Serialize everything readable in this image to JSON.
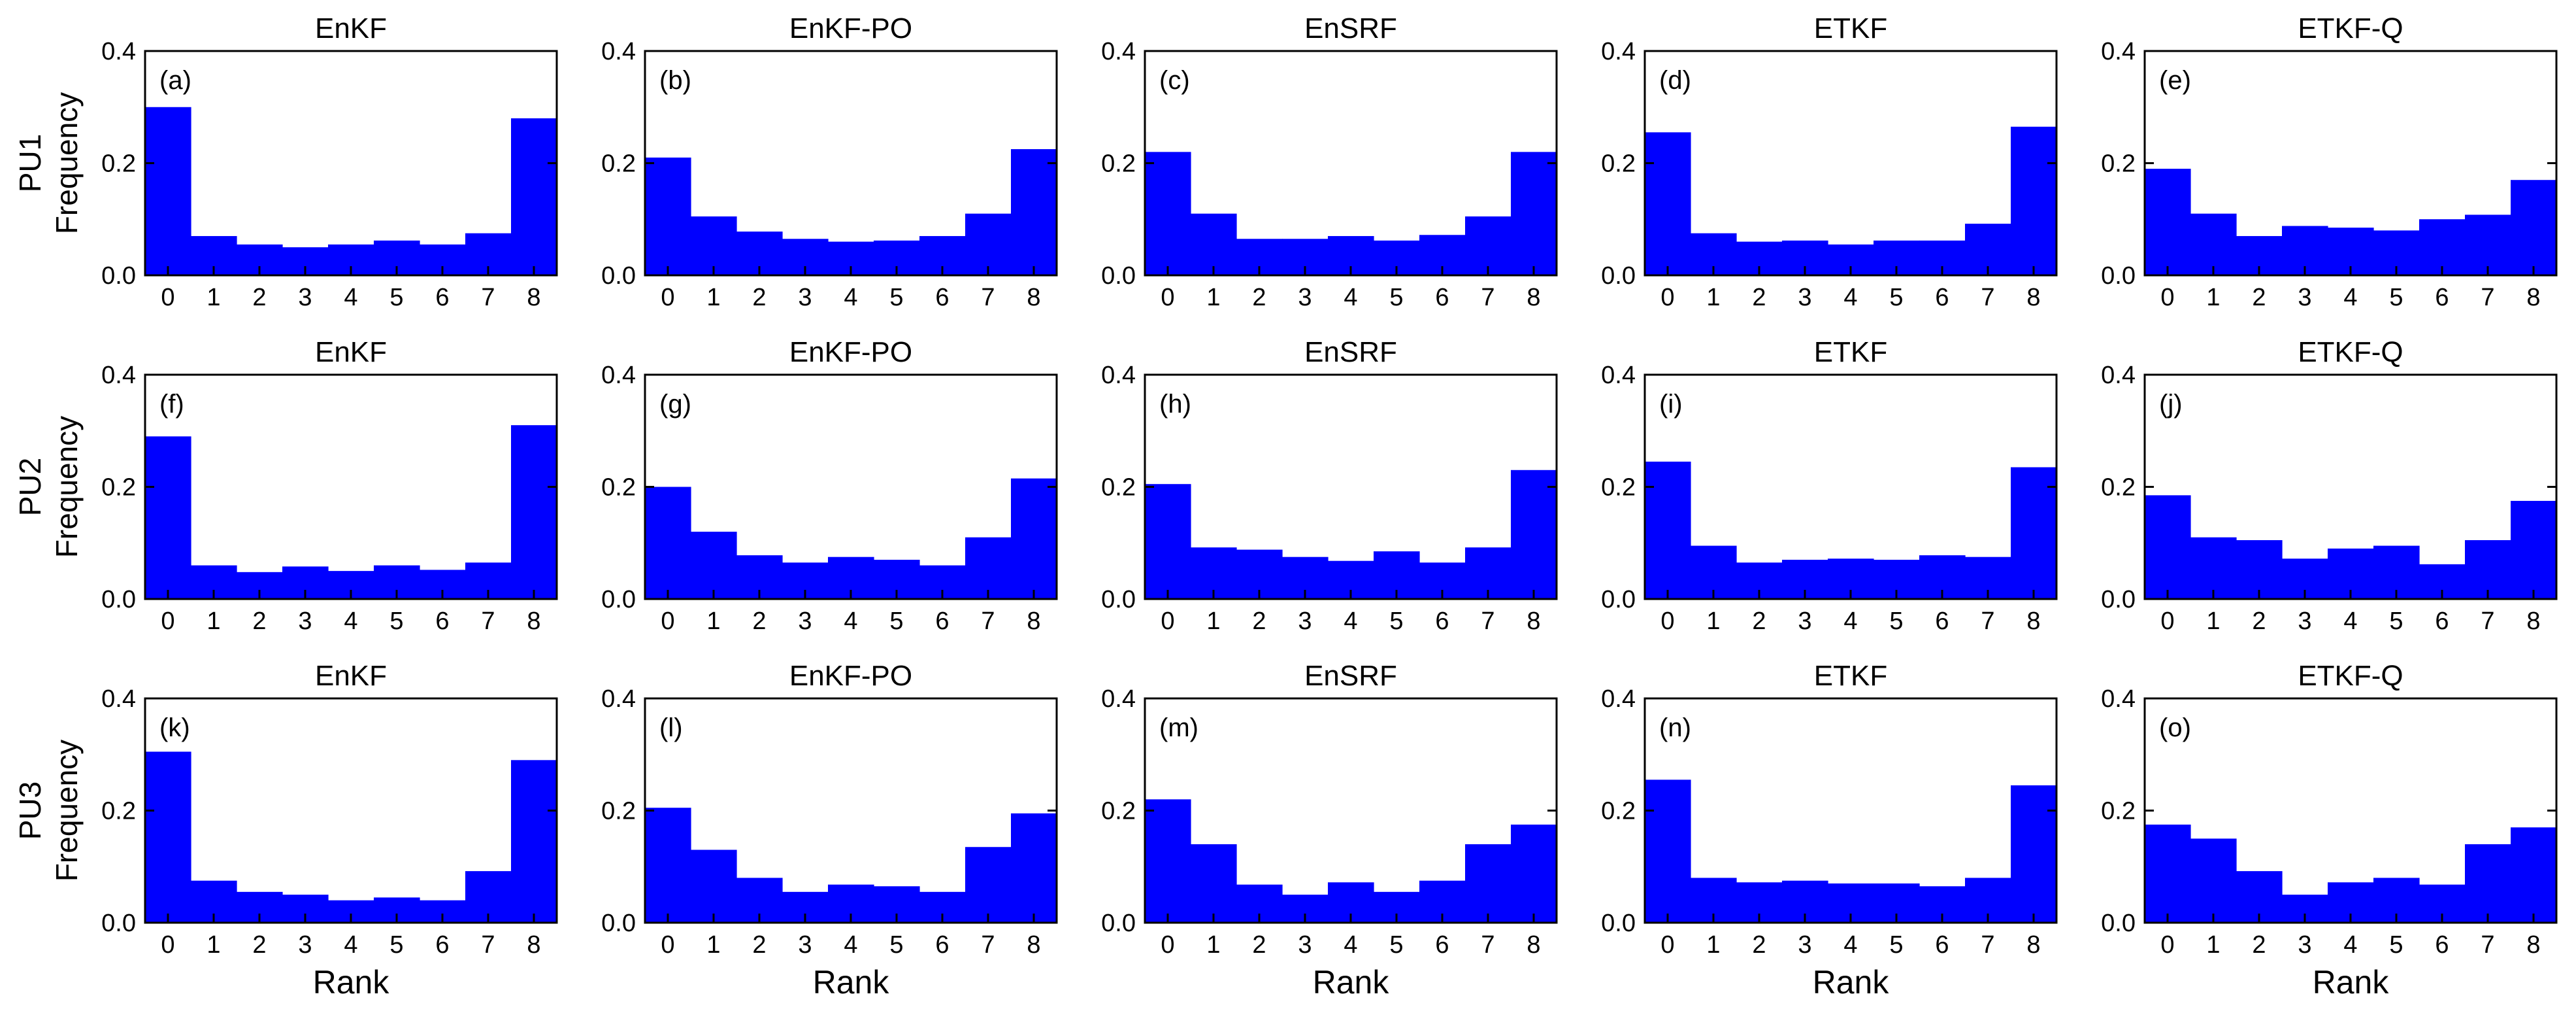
{
  "figure": {
    "row_labels": [
      "PU1",
      "PU2",
      "PU3"
    ],
    "column_titles": [
      "EnKF",
      "EnKF-PO",
      "EnSRF",
      "ETKF",
      "ETKF-Q"
    ],
    "ylabel": "Frequency",
    "xlabel": "Rank",
    "bar_color": "#0000ff",
    "axis_color": "#000000"
  },
  "chart_data": [
    {
      "type": "bar",
      "panel": "(a)",
      "row_label": "PU1",
      "title": "EnKF",
      "xlabel": "",
      "ylabel": "Frequency",
      "categories": [
        "0",
        "1",
        "2",
        "3",
        "4",
        "5",
        "6",
        "7",
        "8"
      ],
      "values": [
        0.3,
        0.07,
        0.055,
        0.05,
        0.055,
        0.062,
        0.055,
        0.075,
        0.28
      ],
      "ylim": [
        0,
        0.4
      ],
      "yticks": [
        "0.0",
        "0.2",
        "0.4"
      ]
    },
    {
      "type": "bar",
      "panel": "(b)",
      "row_label": "PU1",
      "title": "EnKF-PO",
      "xlabel": "",
      "ylabel": "",
      "categories": [
        "0",
        "1",
        "2",
        "3",
        "4",
        "5",
        "6",
        "7",
        "8"
      ],
      "values": [
        0.21,
        0.105,
        0.078,
        0.065,
        0.06,
        0.062,
        0.07,
        0.11,
        0.225
      ],
      "ylim": [
        0,
        0.4
      ],
      "yticks": [
        "0.0",
        "0.2",
        "0.4"
      ]
    },
    {
      "type": "bar",
      "panel": "(c)",
      "row_label": "PU1",
      "title": "EnSRF",
      "xlabel": "",
      "ylabel": "",
      "categories": [
        "0",
        "1",
        "2",
        "3",
        "4",
        "5",
        "6",
        "7",
        "8"
      ],
      "values": [
        0.22,
        0.11,
        0.065,
        0.065,
        0.07,
        0.062,
        0.072,
        0.105,
        0.22
      ],
      "ylim": [
        0,
        0.4
      ],
      "yticks": [
        "0.0",
        "0.2",
        "0.4"
      ]
    },
    {
      "type": "bar",
      "panel": "(d)",
      "row_label": "PU1",
      "title": "ETKF",
      "xlabel": "",
      "ylabel": "",
      "categories": [
        "0",
        "1",
        "2",
        "3",
        "4",
        "5",
        "6",
        "7",
        "8"
      ],
      "values": [
        0.255,
        0.075,
        0.06,
        0.062,
        0.055,
        0.062,
        0.062,
        0.092,
        0.265
      ],
      "ylim": [
        0,
        0.4
      ],
      "yticks": [
        "0.0",
        "0.2",
        "0.4"
      ]
    },
    {
      "type": "bar",
      "panel": "(e)",
      "row_label": "PU1",
      "title": "ETKF-Q",
      "xlabel": "",
      "ylabel": "",
      "categories": [
        "0",
        "1",
        "2",
        "3",
        "4",
        "5",
        "6",
        "7",
        "8"
      ],
      "values": [
        0.19,
        0.11,
        0.07,
        0.088,
        0.085,
        0.08,
        0.1,
        0.108,
        0.17
      ],
      "ylim": [
        0,
        0.4
      ],
      "yticks": [
        "0.0",
        "0.2",
        "0.4"
      ]
    },
    {
      "type": "bar",
      "panel": "(f)",
      "row_label": "PU2",
      "title": "EnKF",
      "xlabel": "",
      "ylabel": "Frequency",
      "categories": [
        "0",
        "1",
        "2",
        "3",
        "4",
        "5",
        "6",
        "7",
        "8"
      ],
      "values": [
        0.29,
        0.06,
        0.048,
        0.058,
        0.05,
        0.06,
        0.052,
        0.065,
        0.31
      ],
      "ylim": [
        0,
        0.4
      ],
      "yticks": [
        "0.0",
        "0.2",
        "0.4"
      ]
    },
    {
      "type": "bar",
      "panel": "(g)",
      "row_label": "PU2",
      "title": "EnKF-PO",
      "xlabel": "",
      "ylabel": "",
      "categories": [
        "0",
        "1",
        "2",
        "3",
        "4",
        "5",
        "6",
        "7",
        "8"
      ],
      "values": [
        0.2,
        0.12,
        0.078,
        0.065,
        0.075,
        0.07,
        0.06,
        0.11,
        0.215
      ],
      "ylim": [
        0,
        0.4
      ],
      "yticks": [
        "0.0",
        "0.2",
        "0.4"
      ]
    },
    {
      "type": "bar",
      "panel": "(h)",
      "row_label": "PU2",
      "title": "EnSRF",
      "xlabel": "",
      "ylabel": "",
      "categories": [
        "0",
        "1",
        "2",
        "3",
        "4",
        "5",
        "6",
        "7",
        "8"
      ],
      "values": [
        0.205,
        0.092,
        0.088,
        0.075,
        0.068,
        0.085,
        0.065,
        0.092,
        0.23
      ],
      "ylim": [
        0,
        0.4
      ],
      "yticks": [
        "0.0",
        "0.2",
        "0.4"
      ]
    },
    {
      "type": "bar",
      "panel": "(i)",
      "row_label": "PU2",
      "title": "ETKF",
      "xlabel": "",
      "ylabel": "",
      "categories": [
        "0",
        "1",
        "2",
        "3",
        "4",
        "5",
        "6",
        "7",
        "8"
      ],
      "values": [
        0.245,
        0.095,
        0.065,
        0.07,
        0.072,
        0.07,
        0.078,
        0.075,
        0.235
      ],
      "ylim": [
        0,
        0.4
      ],
      "yticks": [
        "0.0",
        "0.2",
        "0.4"
      ]
    },
    {
      "type": "bar",
      "panel": "(j)",
      "row_label": "PU2",
      "title": "ETKF-Q",
      "xlabel": "",
      "ylabel": "",
      "categories": [
        "0",
        "1",
        "2",
        "3",
        "4",
        "5",
        "6",
        "7",
        "8"
      ],
      "values": [
        0.185,
        0.11,
        0.105,
        0.072,
        0.09,
        0.095,
        0.062,
        0.105,
        0.175
      ],
      "ylim": [
        0,
        0.4
      ],
      "yticks": [
        "0.0",
        "0.2",
        "0.4"
      ]
    },
    {
      "type": "bar",
      "panel": "(k)",
      "row_label": "PU3",
      "title": "EnKF",
      "xlabel": "Rank",
      "ylabel": "Frequency",
      "categories": [
        "0",
        "1",
        "2",
        "3",
        "4",
        "5",
        "6",
        "7",
        "8"
      ],
      "values": [
        0.305,
        0.075,
        0.055,
        0.05,
        0.04,
        0.045,
        0.04,
        0.092,
        0.29
      ],
      "ylim": [
        0,
        0.4
      ],
      "yticks": [
        "0.0",
        "0.2",
        "0.4"
      ]
    },
    {
      "type": "bar",
      "panel": "(l)",
      "row_label": "PU3",
      "title": "EnKF-PO",
      "xlabel": "Rank",
      "ylabel": "",
      "categories": [
        "0",
        "1",
        "2",
        "3",
        "4",
        "5",
        "6",
        "7",
        "8"
      ],
      "values": [
        0.205,
        0.13,
        0.08,
        0.055,
        0.068,
        0.065,
        0.055,
        0.135,
        0.195
      ],
      "ylim": [
        0,
        0.4
      ],
      "yticks": [
        "0.0",
        "0.2",
        "0.4"
      ]
    },
    {
      "type": "bar",
      "panel": "(m)",
      "row_label": "PU3",
      "title": "EnSRF",
      "xlabel": "Rank",
      "ylabel": "",
      "categories": [
        "0",
        "1",
        "2",
        "3",
        "4",
        "5",
        "6",
        "7",
        "8"
      ],
      "values": [
        0.22,
        0.14,
        0.068,
        0.05,
        0.072,
        0.055,
        0.075,
        0.14,
        0.175
      ],
      "ylim": [
        0,
        0.4
      ],
      "yticks": [
        "0.0",
        "0.2",
        "0.4"
      ]
    },
    {
      "type": "bar",
      "panel": "(n)",
      "row_label": "PU3",
      "title": "ETKF",
      "xlabel": "Rank",
      "ylabel": "",
      "categories": [
        "0",
        "1",
        "2",
        "3",
        "4",
        "5",
        "6",
        "7",
        "8"
      ],
      "values": [
        0.255,
        0.08,
        0.072,
        0.075,
        0.07,
        0.07,
        0.065,
        0.08,
        0.245
      ],
      "ylim": [
        0,
        0.4
      ],
      "yticks": [
        "0.0",
        "0.2",
        "0.4"
      ]
    },
    {
      "type": "bar",
      "panel": "(o)",
      "row_label": "PU3",
      "title": "ETKF-Q",
      "xlabel": "Rank",
      "ylabel": "",
      "categories": [
        "0",
        "1",
        "2",
        "3",
        "4",
        "5",
        "6",
        "7",
        "8"
      ],
      "values": [
        0.175,
        0.15,
        0.092,
        0.05,
        0.072,
        0.08,
        0.068,
        0.14,
        0.17
      ],
      "ylim": [
        0,
        0.4
      ],
      "yticks": [
        "0.0",
        "0.2",
        "0.4"
      ]
    }
  ]
}
